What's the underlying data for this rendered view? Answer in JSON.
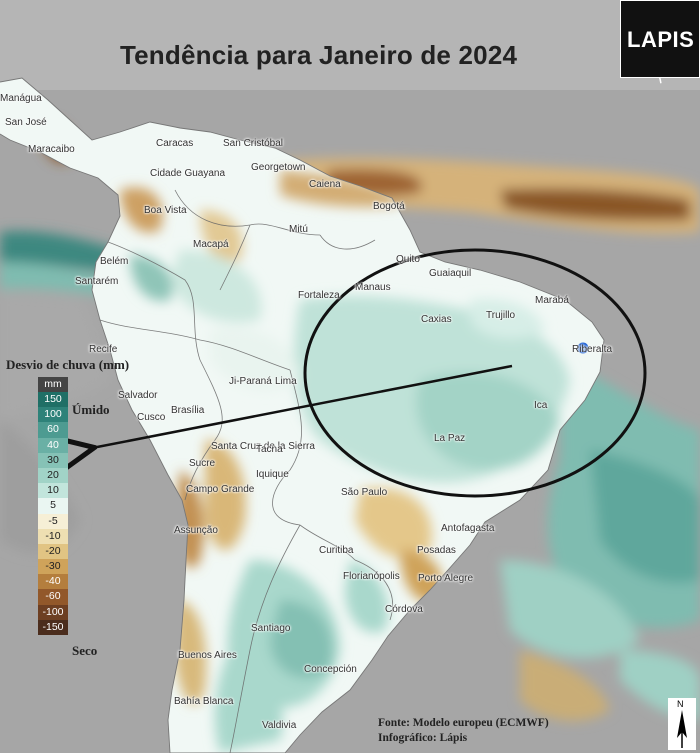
{
  "title": "Tendência para Janeiro de 2024",
  "logo": {
    "text": "LAPIS",
    "icon": "satellite-icon"
  },
  "legend": {
    "title": "Desvio de chuva (mm)",
    "unit": "mm",
    "wet_label": "Úmido",
    "dry_label": "Seco",
    "items": [
      {
        "value": "150",
        "color": "#1f6f66"
      },
      {
        "value": "100",
        "color": "#2e8279"
      },
      {
        "value": "60",
        "color": "#4d9b91"
      },
      {
        "value": "40",
        "color": "#6ab0a5"
      },
      {
        "value": "30",
        "color": "#86c2b6"
      },
      {
        "value": "20",
        "color": "#a1d3c7"
      },
      {
        "value": "10",
        "color": "#c2e5dc"
      },
      {
        "value": "5",
        "color": "#eaf6f2"
      },
      {
        "value": "-5",
        "color": "#f6efd6"
      },
      {
        "value": "-10",
        "color": "#eedfb2"
      },
      {
        "value": "-20",
        "color": "#e1c483"
      },
      {
        "value": "-30",
        "color": "#cfa35a"
      },
      {
        "value": "-40",
        "color": "#b47e3d"
      },
      {
        "value": "-60",
        "color": "#92582a"
      },
      {
        "value": "-100",
        "color": "#6d3f22"
      },
      {
        "value": "-150",
        "color": "#4b2d1d"
      }
    ]
  },
  "cities": [
    {
      "name": "Manágua"
    },
    {
      "name": "San José"
    },
    {
      "name": "Maracaibo"
    },
    {
      "name": "Caracas"
    },
    {
      "name": "San Cristóbal"
    },
    {
      "name": "Cidade Guayana"
    },
    {
      "name": "Georgetown"
    },
    {
      "name": "Caiena"
    },
    {
      "name": "Bogotá"
    },
    {
      "name": "Boa Vista"
    },
    {
      "name": "Mitú"
    },
    {
      "name": "Macapá"
    },
    {
      "name": "Quito"
    },
    {
      "name": "Belém"
    },
    {
      "name": "Guaiaquil"
    },
    {
      "name": "Santarém"
    },
    {
      "name": "Manaus"
    },
    {
      "name": "Fortaleza"
    },
    {
      "name": "Marabá"
    },
    {
      "name": "Caxias"
    },
    {
      "name": "Trujillo"
    },
    {
      "name": "Recife"
    },
    {
      "name": "Riberalta"
    },
    {
      "name": "Ji-Paraná"
    },
    {
      "name": "Lima"
    },
    {
      "name": "Salvador"
    },
    {
      "name": "Ica"
    },
    {
      "name": "Cusco"
    },
    {
      "name": "Brasília"
    },
    {
      "name": "La Paz"
    },
    {
      "name": "Santa Cruz de la Sierra"
    },
    {
      "name": "Tacna"
    },
    {
      "name": "Sucre"
    },
    {
      "name": "Iquique"
    },
    {
      "name": "Campo Grande"
    },
    {
      "name": "São Paulo"
    },
    {
      "name": "Antofagasta"
    },
    {
      "name": "Assunção"
    },
    {
      "name": "Curitiba"
    },
    {
      "name": "Posadas"
    },
    {
      "name": "Florianópolis"
    },
    {
      "name": "Porto Alegre"
    },
    {
      "name": "Córdova"
    },
    {
      "name": "Santiago"
    },
    {
      "name": "Buenos Aires"
    },
    {
      "name": "Concepción"
    },
    {
      "name": "Bahía Blanca"
    },
    {
      "name": "Valdivia"
    }
  ],
  "credits": {
    "source": "Fonte: Modelo europeu (ECMWF)",
    "infographic": "Infográfico: Lápis"
  },
  "compass": {
    "label": "N",
    "icon": "north-arrow-icon"
  },
  "marker_color": "#1a5fd6"
}
